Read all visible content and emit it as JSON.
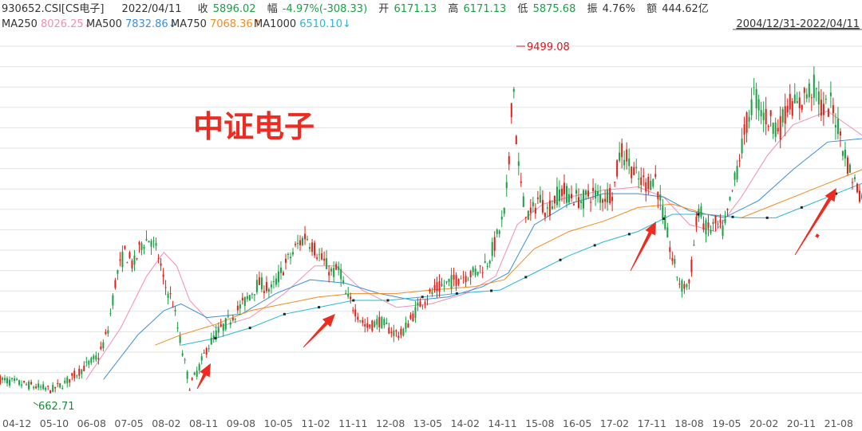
{
  "header": {
    "symbol_label": "930652.CSI[CS电子]",
    "date": "2022/04/11",
    "close_label": "收",
    "close_value": "5896.02",
    "change_label": "幅",
    "change_value": "-4.97%(-308.33)",
    "open_label": "开",
    "open_value": "6171.13",
    "high_label": "高",
    "high_value": "6171.13",
    "low_label": "低",
    "low_value": "5875.68",
    "amplitude_label": "振",
    "amplitude_value": "4.76%",
    "amount_label": "额",
    "amount_value": "444.62亿",
    "date_range": "2004/12/31-2022/04/11"
  },
  "legend": [
    {
      "name": "MA250",
      "value": "8026.25",
      "arrow": "↓",
      "color": "#f28db3"
    },
    {
      "name": "MA500",
      "value": "7832.86",
      "arrow": "↓",
      "color": "#3d8ed8"
    },
    {
      "name": "MA750",
      "value": "7068.36",
      "arrow": "↑",
      "color": "#ef8c22"
    },
    {
      "name": "MA1000",
      "value": "6510.10",
      "arrow": "↓",
      "color": "#29b7d6"
    }
  ],
  "overlay_title": "中证电子",
  "colors": {
    "up": "#e0201a",
    "down": "#19a045",
    "arrow": "#ee2b20",
    "grid": "#e3e3e3",
    "high_label": "#d6181e",
    "low_label": "#1b8a3a"
  },
  "chart_data": {
    "type": "candlestick",
    "title": "",
    "x_ticks": [
      "04-12",
      "05-10",
      "06-08",
      "07-05",
      "08-02",
      "08-11",
      "09-08",
      "10-05",
      "11-02",
      "11-11",
      "12-08",
      "13-05",
      "14-02",
      "14-11",
      "15-08",
      "16-05",
      "17-02",
      "17-11",
      "18-08",
      "19-05",
      "20-02",
      "20-11",
      "21-08"
    ],
    "annotations": {
      "max": "9499.08",
      "min": "662.71"
    },
    "price_path": [
      [
        0,
        0.05
      ],
      [
        0.03,
        0.035
      ],
      [
        0.06,
        0.02
      ],
      [
        0.075,
        0.04
      ],
      [
        0.1,
        0.09
      ],
      [
        0.115,
        0.12
      ],
      [
        0.125,
        0.19
      ],
      [
        0.135,
        0.35
      ],
      [
        0.145,
        0.42
      ],
      [
        0.155,
        0.38
      ],
      [
        0.165,
        0.45
      ],
      [
        0.175,
        0.46
      ],
      [
        0.185,
        0.4
      ],
      [
        0.19,
        0.33
      ],
      [
        0.2,
        0.28
      ],
      [
        0.21,
        0.15
      ],
      [
        0.22,
        0.03
      ],
      [
        0.23,
        0.08
      ],
      [
        0.24,
        0.14
      ],
      [
        0.25,
        0.18
      ],
      [
        0.265,
        0.22
      ],
      [
        0.285,
        0.28
      ],
      [
        0.3,
        0.33
      ],
      [
        0.315,
        0.31
      ],
      [
        0.33,
        0.38
      ],
      [
        0.345,
        0.44
      ],
      [
        0.355,
        0.47
      ],
      [
        0.37,
        0.41
      ],
      [
        0.385,
        0.36
      ],
      [
        0.395,
        0.37
      ],
      [
        0.4,
        0.3
      ],
      [
        0.41,
        0.26
      ],
      [
        0.425,
        0.2
      ],
      [
        0.44,
        0.22
      ],
      [
        0.455,
        0.19
      ],
      [
        0.465,
        0.18
      ],
      [
        0.48,
        0.24
      ],
      [
        0.49,
        0.28
      ],
      [
        0.505,
        0.31
      ],
      [
        0.52,
        0.33
      ],
      [
        0.535,
        0.35
      ],
      [
        0.55,
        0.36
      ],
      [
        0.565,
        0.39
      ],
      [
        0.575,
        0.45
      ],
      [
        0.585,
        0.53
      ],
      [
        0.59,
        0.65
      ],
      [
        0.595,
        0.95
      ],
      [
        0.6,
        0.7
      ],
      [
        0.607,
        0.56
      ],
      [
        0.615,
        0.52
      ],
      [
        0.625,
        0.58
      ],
      [
        0.635,
        0.54
      ],
      [
        0.65,
        0.6
      ],
      [
        0.665,
        0.58
      ],
      [
        0.675,
        0.57
      ],
      [
        0.685,
        0.59
      ],
      [
        0.7,
        0.58
      ],
      [
        0.712,
        0.6
      ],
      [
        0.72,
        0.72
      ],
      [
        0.73,
        0.68
      ],
      [
        0.74,
        0.63
      ],
      [
        0.75,
        0.62
      ],
      [
        0.76,
        0.64
      ],
      [
        0.77,
        0.52
      ],
      [
        0.78,
        0.4
      ],
      [
        0.79,
        0.32
      ],
      [
        0.8,
        0.33
      ],
      [
        0.81,
        0.55
      ],
      [
        0.82,
        0.48
      ],
      [
        0.83,
        0.5
      ],
      [
        0.84,
        0.48
      ],
      [
        0.85,
        0.6
      ],
      [
        0.865,
        0.78
      ],
      [
        0.875,
        0.88
      ],
      [
        0.885,
        0.82
      ],
      [
        0.895,
        0.8
      ],
      [
        0.905,
        0.78
      ],
      [
        0.915,
        0.86
      ],
      [
        0.925,
        0.84
      ],
      [
        0.935,
        0.88
      ],
      [
        0.945,
        0.9
      ],
      [
        0.955,
        0.83
      ],
      [
        0.965,
        0.85
      ],
      [
        0.975,
        0.76
      ],
      [
        0.985,
        0.66
      ],
      [
        1.0,
        0.58
      ]
    ],
    "ma_paths": {
      "MA250": [
        [
          0.1,
          0.05
        ],
        [
          0.14,
          0.2
        ],
        [
          0.17,
          0.35
        ],
        [
          0.19,
          0.42
        ],
        [
          0.205,
          0.38
        ],
        [
          0.22,
          0.28
        ],
        [
          0.25,
          0.2
        ],
        [
          0.29,
          0.23
        ],
        [
          0.33,
          0.3
        ],
        [
          0.365,
          0.38
        ],
        [
          0.39,
          0.38
        ],
        [
          0.42,
          0.31
        ],
        [
          0.46,
          0.26
        ],
        [
          0.5,
          0.27
        ],
        [
          0.54,
          0.3
        ],
        [
          0.575,
          0.35
        ],
        [
          0.6,
          0.5
        ],
        [
          0.63,
          0.56
        ],
        [
          0.66,
          0.58
        ],
        [
          0.7,
          0.6
        ],
        [
          0.74,
          0.61
        ],
        [
          0.77,
          0.58
        ],
        [
          0.8,
          0.5
        ],
        [
          0.83,
          0.48
        ],
        [
          0.86,
          0.58
        ],
        [
          0.89,
          0.7
        ],
        [
          0.92,
          0.79
        ],
        [
          0.96,
          0.83
        ],
        [
          1.0,
          0.76
        ]
      ],
      "MA500": [
        [
          0.12,
          0.05
        ],
        [
          0.16,
          0.18
        ],
        [
          0.19,
          0.25
        ],
        [
          0.21,
          0.27
        ],
        [
          0.24,
          0.23
        ],
        [
          0.28,
          0.24
        ],
        [
          0.32,
          0.3
        ],
        [
          0.36,
          0.34
        ],
        [
          0.4,
          0.33
        ],
        [
          0.44,
          0.3
        ],
        [
          0.48,
          0.28
        ],
        [
          0.52,
          0.29
        ],
        [
          0.56,
          0.32
        ],
        [
          0.59,
          0.36
        ],
        [
          0.62,
          0.5
        ],
        [
          0.66,
          0.56
        ],
        [
          0.7,
          0.59
        ],
        [
          0.74,
          0.59
        ],
        [
          0.77,
          0.58
        ],
        [
          0.8,
          0.54
        ],
        [
          0.84,
          0.52
        ],
        [
          0.88,
          0.57
        ],
        [
          0.92,
          0.66
        ],
        [
          0.96,
          0.74
        ],
        [
          1.0,
          0.75
        ]
      ],
      "MA750": [
        [
          0.18,
          0.15
        ],
        [
          0.21,
          0.18
        ],
        [
          0.25,
          0.21
        ],
        [
          0.29,
          0.25
        ],
        [
          0.33,
          0.27
        ],
        [
          0.37,
          0.29
        ],
        [
          0.41,
          0.3
        ],
        [
          0.46,
          0.3
        ],
        [
          0.5,
          0.31
        ],
        [
          0.55,
          0.32
        ],
        [
          0.585,
          0.34
        ],
        [
          0.62,
          0.43
        ],
        [
          0.66,
          0.48
        ],
        [
          0.7,
          0.51
        ],
        [
          0.74,
          0.55
        ],
        [
          0.78,
          0.56
        ],
        [
          0.82,
          0.53
        ],
        [
          0.86,
          0.52
        ],
        [
          0.9,
          0.56
        ],
        [
          0.94,
          0.6
        ],
        [
          1.0,
          0.66
        ]
      ],
      "MA1000": [
        [
          0.21,
          0.15
        ],
        [
          0.25,
          0.17
        ],
        [
          0.29,
          0.2
        ],
        [
          0.33,
          0.24
        ],
        [
          0.37,
          0.26
        ],
        [
          0.41,
          0.28
        ],
        [
          0.45,
          0.28
        ],
        [
          0.49,
          0.29
        ],
        [
          0.53,
          0.3
        ],
        [
          0.58,
          0.31
        ],
        [
          0.62,
          0.36
        ],
        [
          0.66,
          0.41
        ],
        [
          0.7,
          0.45
        ],
        [
          0.74,
          0.48
        ],
        [
          0.78,
          0.53
        ],
        [
          0.82,
          0.53
        ],
        [
          0.86,
          0.52
        ],
        [
          0.9,
          0.52
        ],
        [
          0.94,
          0.56
        ],
        [
          0.98,
          0.6
        ],
        [
          1.0,
          0.62
        ]
      ]
    },
    "ma1000_markers": [
      0.25,
      0.29,
      0.33,
      0.37,
      0.41,
      0.45,
      0.49,
      0.53,
      0.57,
      0.61,
      0.65,
      0.69,
      0.73,
      0.77,
      0.81,
      0.85,
      0.89,
      0.93,
      0.97
    ],
    "grid": true
  }
}
